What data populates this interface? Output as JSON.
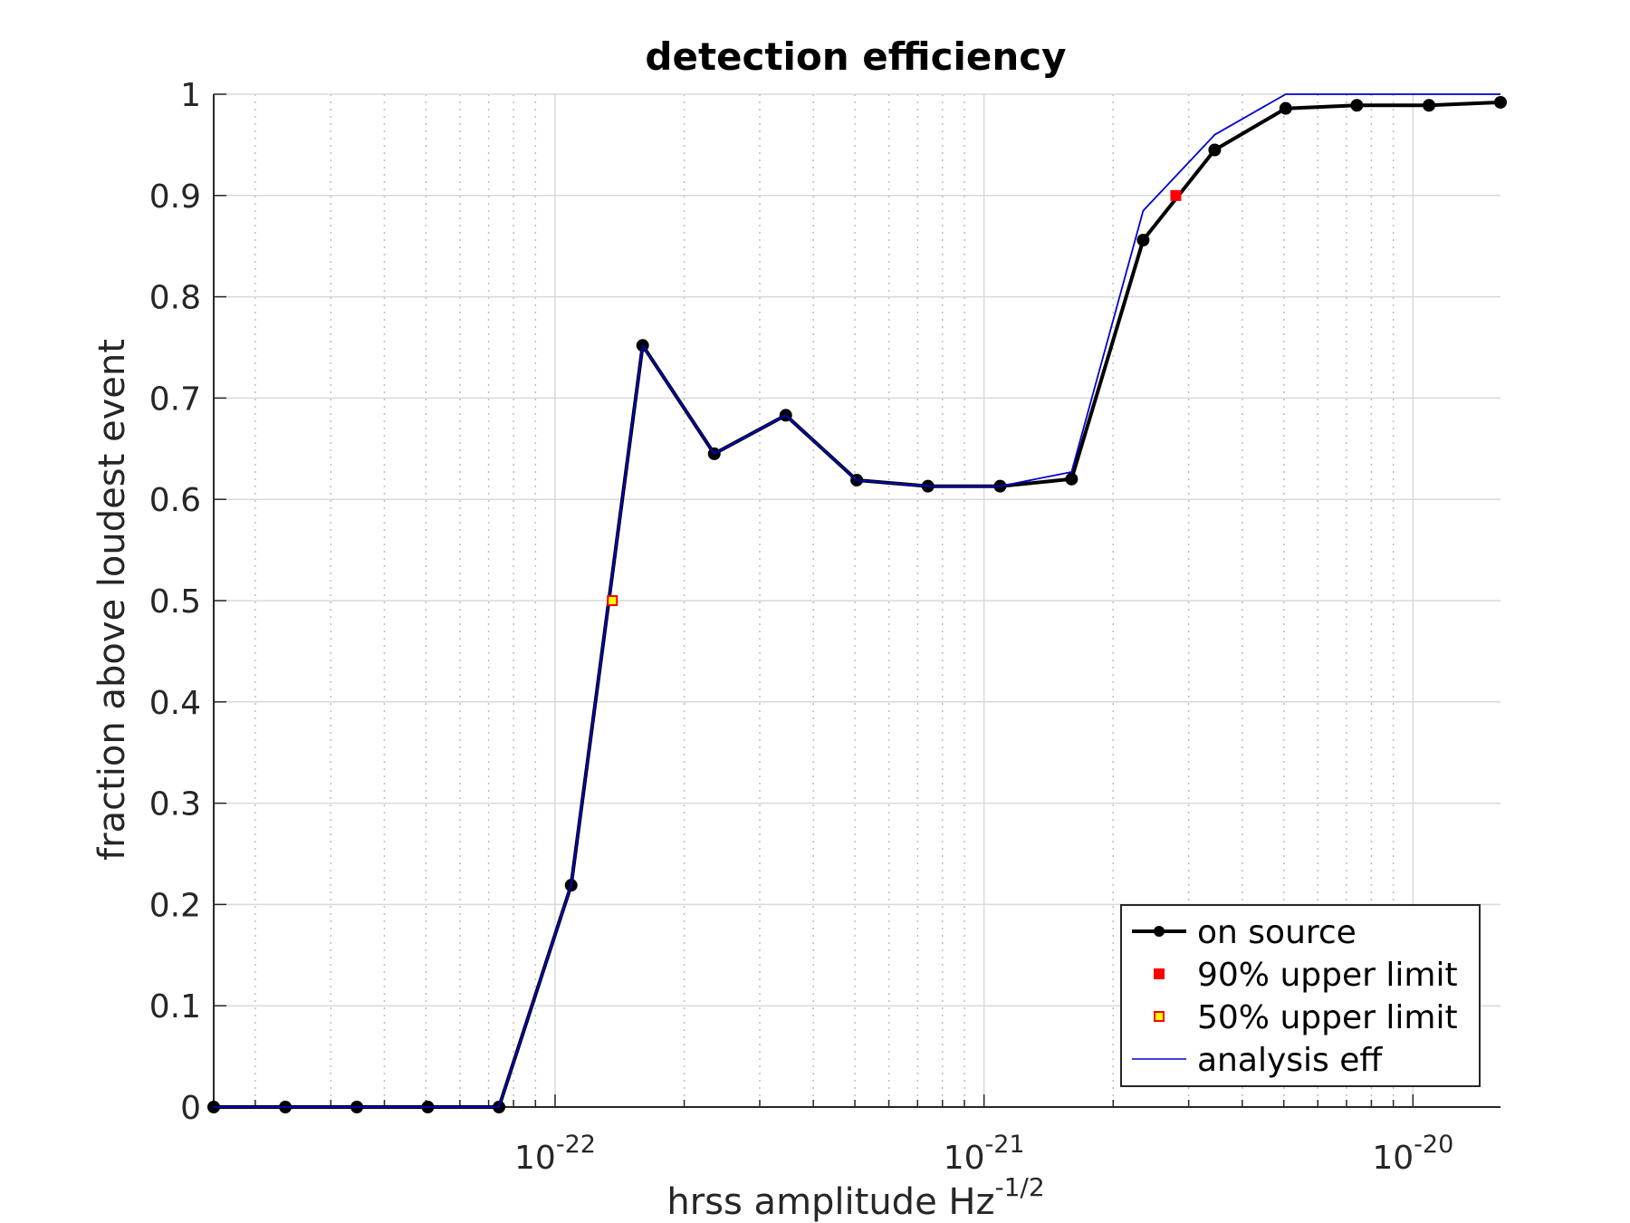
{
  "chart_data": {
    "type": "line",
    "title": "detection efficiency",
    "xlabel": "hrss amplitude Hz",
    "xlabel_superscript": "-1/2",
    "ylabel": "fraction above loudest event",
    "xscale": "log",
    "xlim": [
      1.6e-23,
      1.6e-20
    ],
    "ylim": [
      0,
      1
    ],
    "grid": true,
    "legend_position": "bottom-right",
    "x_ticks": [
      {
        "value": 1e-22,
        "base": "10",
        "exp": "-22"
      },
      {
        "value": 1e-21,
        "base": "10",
        "exp": "-21"
      },
      {
        "value": 1e-20,
        "base": "10",
        "exp": "-20"
      }
    ],
    "y_ticks": [
      "0",
      "0.1",
      "0.2",
      "0.3",
      "0.4",
      "0.5",
      "0.6",
      "0.7",
      "0.8",
      "0.9",
      "1"
    ],
    "series": [
      {
        "name": "on source",
        "color": "#000000",
        "style": "line-with-dots",
        "x": [
          1.6e-23,
          2.35e-23,
          3.45e-23,
          5.05e-23,
          7.4e-23,
          1.09e-22,
          1.6e-22,
          2.35e-22,
          3.45e-22,
          5.05e-22,
          7.4e-22,
          1.09e-21,
          1.6e-21,
          2.35e-21,
          3.45e-21,
          5.05e-21,
          7.4e-21,
          1.09e-20,
          1.6e-20
        ],
        "y": [
          0,
          0,
          0,
          0,
          0,
          0.219,
          0.752,
          0.645,
          0.683,
          0.619,
          0.613,
          0.613,
          0.62,
          0.856,
          0.945,
          0.986,
          0.989,
          0.989,
          0.992
        ]
      },
      {
        "name": "analysis eff",
        "color": "#0000d0",
        "style": "thin-line",
        "x": [
          1.6e-23,
          2.35e-23,
          3.45e-23,
          5.05e-23,
          7.4e-23,
          1.09e-22,
          1.6e-22,
          2.35e-22,
          3.45e-22,
          5.05e-22,
          7.4e-22,
          1.09e-21,
          1.6e-21,
          2.35e-21,
          3.45e-21,
          5.05e-21,
          7.4e-21,
          1.09e-20,
          1.6e-20
        ],
        "y": [
          0,
          0,
          0,
          0,
          0,
          0.219,
          0.752,
          0.645,
          0.683,
          0.619,
          0.613,
          0.613,
          0.627,
          0.885,
          0.96,
          1.0,
          1.0,
          1.0,
          1.0
        ]
      }
    ],
    "markers": [
      {
        "name": "90% upper limit",
        "x": 2.8e-21,
        "y": 0.9,
        "fill": "#ff0000",
        "stroke": "#ff0000"
      },
      {
        "name": "50% upper limit",
        "x": 1.36e-22,
        "y": 0.5,
        "fill": "#ffff00",
        "stroke": "#ff0000"
      }
    ],
    "legend": [
      "on source",
      "90% upper limit",
      "50% upper limit",
      "analysis eff"
    ]
  }
}
